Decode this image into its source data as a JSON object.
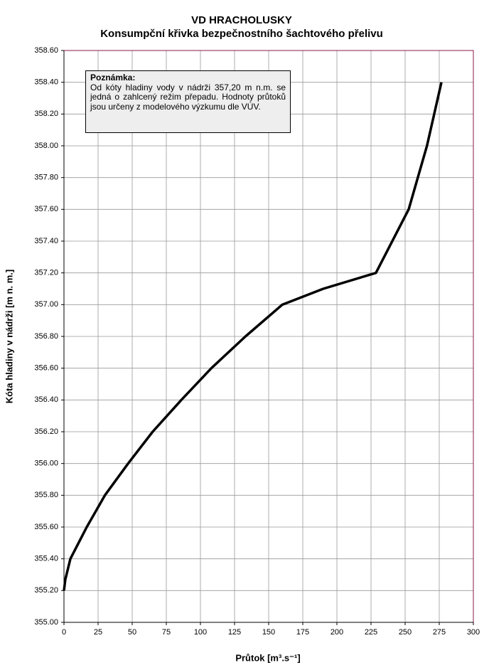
{
  "chart_data": {
    "type": "line",
    "title": "VD HRACHOLUSKY",
    "subtitle": "Konsumpční křivka bezpečnostního šachtového přelivu",
    "x_label": "Průtok [m³.s⁻¹]",
    "y_label": "Kóta hladiny v nádrži [m n. m.]",
    "annotation": {
      "title": "Poznámka:",
      "text": "Od kóty hladiny vody v nádrži 357,20 m n.m. se jedná o zahlcený režim přepadu. Hodnoty průtoků jsou určeny z modelového výzkumu dle VÚV."
    },
    "color": "#000000",
    "grid": true,
    "x": [
      0,
      1,
      4.7,
      16.7,
      30,
      47,
      65,
      86,
      108,
      133,
      160,
      190,
      228.6,
      252.6,
      266,
      276.6
    ],
    "values": [
      355.2,
      355.27,
      355.4,
      355.6,
      355.8,
      356.0,
      356.2,
      356.4,
      356.6,
      356.8,
      357.0,
      357.1,
      357.2,
      357.6,
      358.0,
      358.4
    ],
    "xlim": [
      0,
      300
    ],
    "xticks": [
      0,
      25,
      50,
      75,
      100,
      125,
      150,
      175,
      200,
      225,
      250,
      275,
      300
    ],
    "ylim": [
      355,
      358.6
    ],
    "yticks": [
      {
        "value": 355,
        "label": "355.00"
      },
      {
        "value": 355.2,
        "label": "355.20"
      },
      {
        "value": 355.4,
        "label": "355.40"
      },
      {
        "value": 355.6,
        "label": "355.60"
      },
      {
        "value": 355.8,
        "label": "355.80"
      },
      {
        "value": 356,
        "label": "356.00"
      },
      {
        "value": 356.2,
        "label": "356.20"
      },
      {
        "value": 356.4,
        "label": "356.40"
      },
      {
        "value": 356.6,
        "label": "356.60"
      },
      {
        "value": 356.8,
        "label": "356.80"
      },
      {
        "value": 357,
        "label": "357.00"
      },
      {
        "value": 357.2,
        "label": "357.20"
      },
      {
        "value": 357.4,
        "label": "357.40"
      },
      {
        "value": 357.6,
        "label": "357.60"
      },
      {
        "value": 357.8,
        "label": "357.80"
      },
      {
        "value": 358,
        "label": "358.00"
      },
      {
        "value": 358.2,
        "label": "358.20"
      },
      {
        "value": 358.4,
        "label": "358.40"
      },
      {
        "value": 358.6,
        "label": "358.60"
      }
    ]
  }
}
